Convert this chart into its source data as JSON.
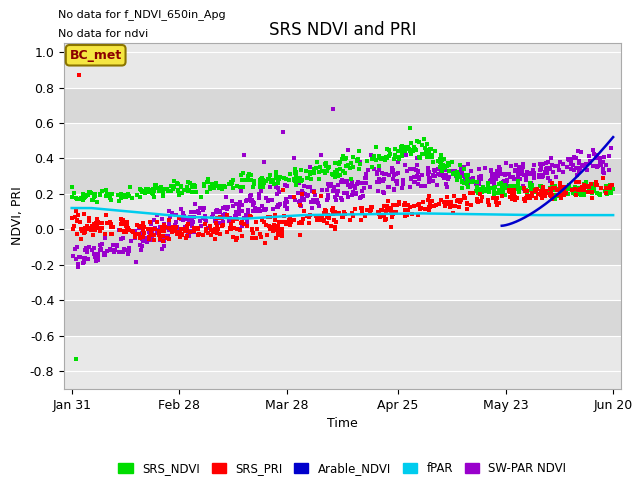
{
  "title": "SRS NDVI and PRI",
  "xlabel": "Time",
  "ylabel": "NDVI, PRI",
  "no_data_text": [
    "No data for f_NDVI_650in_Apg",
    "No data for ndvi"
  ],
  "bc_met_label": "BC_met",
  "bc_met_color": "#f5e642",
  "bc_met_border": "#8B7500",
  "ylim": [
    -0.9,
    1.05
  ],
  "xlim_days": [
    -2,
    143
  ],
  "xtick_labels": [
    "Jan 31",
    "Feb 28",
    "Mar 28",
    "Apr 25",
    "May 23",
    "Jun 20"
  ],
  "xtick_days": [
    0,
    28,
    56,
    85,
    113,
    141
  ],
  "ytick_vals": [
    -0.8,
    -0.6,
    -0.4,
    -0.2,
    0.0,
    0.2,
    0.4,
    0.6,
    0.8,
    1.0
  ],
  "legend_entries": [
    "SRS_NDVI",
    "SRS_PRI",
    "Arable_NDVI",
    "fPAR",
    "SW-PAR NDVI"
  ],
  "legend_colors": [
    "#00dd00",
    "#ff0000",
    "#0000cc",
    "#00ccee",
    "#9900cc"
  ],
  "srs_ndvi_color": "#00dd00",
  "srs_pri_color": "#ff0000",
  "arable_ndvi_color": "#0000cc",
  "fpar_color": "#00ccee",
  "swpar_ndvi_color": "#9900cc",
  "fig_bg_color": "#ffffff",
  "plot_bg_color": "#e8e8e8",
  "plot_bg_dark": "#d8d8d8",
  "grid_color": "#ffffff"
}
